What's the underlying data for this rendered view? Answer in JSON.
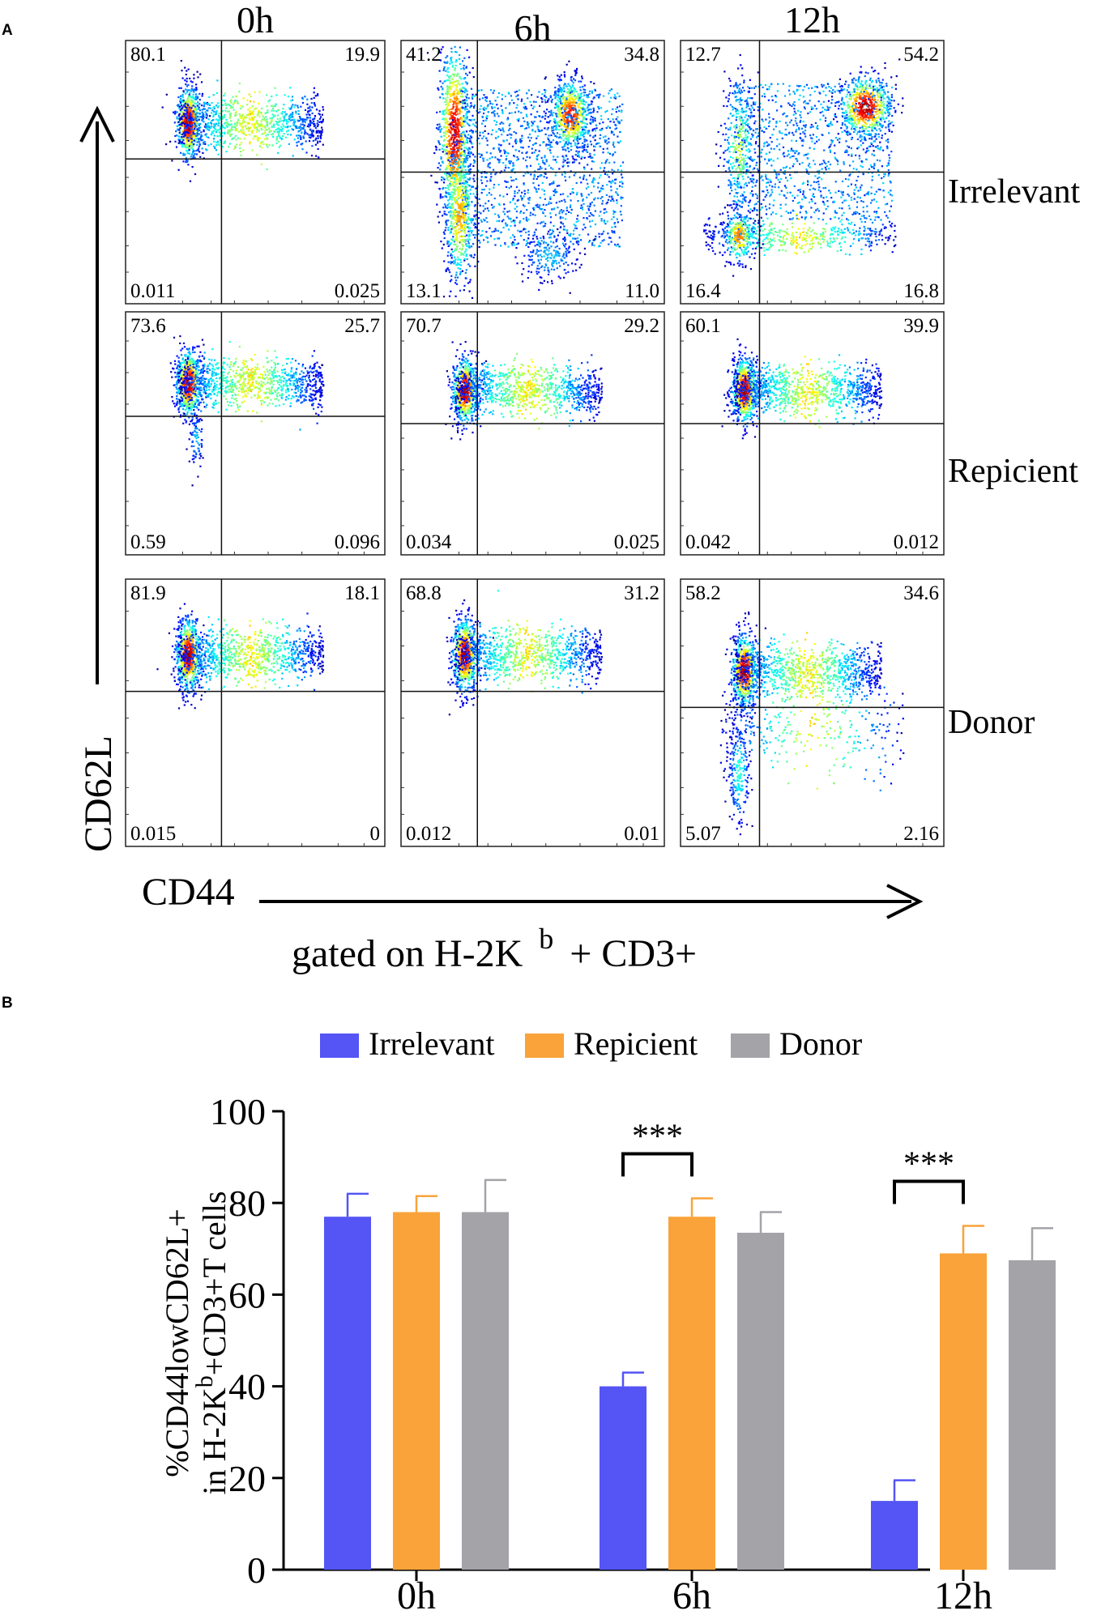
{
  "chart_data": [
    {
      "type": "scatter",
      "panel_label": "A",
      "subtype": "flow-cytometry-density-plots",
      "columns": [
        "0h",
        "6h",
        "12h"
      ],
      "rows": [
        "Irrelevant",
        "Repicient",
        "Donor"
      ],
      "xlabel": "CD44",
      "ylabel": "CD62L",
      "gating_prefix": "gated on H-2K",
      "gating_sup": "b",
      "gating_suffix": "+ CD3+",
      "quadrants": [
        [
          {
            "tl": "80.1",
            "tr": "19.9",
            "bl": "0.011",
            "br": "0.025"
          },
          {
            "tl": "41.2",
            "tr": "34.8",
            "bl": "13.1",
            "br": "11.0"
          },
          {
            "tl": "12.7",
            "tr": "54.2",
            "bl": "16.4",
            "br": "16.8"
          }
        ],
        [
          {
            "tl": "73.6",
            "tr": "25.7",
            "bl": "0.59",
            "br": "0.096"
          },
          {
            "tl": "70.7",
            "tr": "29.2",
            "bl": "0.034",
            "br": "0.025"
          },
          {
            "tl": "60.1",
            "tr": "39.9",
            "bl": "0.042",
            "br": "0.012"
          }
        ],
        [
          {
            "tl": "81.9",
            "tr": "18.1",
            "bl": "0.015",
            "br": "0"
          },
          {
            "tl": "68.8",
            "tr": "31.2",
            "bl": "0.012",
            "br": "0.01"
          },
          {
            "tl": "58.2",
            "tr": "34.6",
            "bl": "5.07",
            "br": "2.16"
          }
        ]
      ]
    },
    {
      "type": "bar",
      "panel_label": "B",
      "categories": [
        "0h",
        "6h",
        "12h"
      ],
      "series": [
        {
          "name": "Irrelevant",
          "color": "#5455f4",
          "values": [
            77,
            40,
            15
          ],
          "errors": [
            5,
            3,
            4.5
          ]
        },
        {
          "name": "Repicient",
          "color": "#f9a33a",
          "values": [
            78,
            77,
            69
          ],
          "errors": [
            3.5,
            4,
            6
          ]
        },
        {
          "name": "Donor",
          "color": "#a3a3a8",
          "values": [
            78,
            73.5,
            67.5
          ],
          "errors": [
            7,
            4.5,
            7
          ]
        }
      ],
      "ylim": [
        0,
        100
      ],
      "yticks": [
        0,
        20,
        40,
        60,
        80,
        100
      ],
      "ylabel_line1": "%CD44lowCD62L+",
      "ylabel_line2_prefix": "in H-2K",
      "ylabel_line2_sup": "b",
      "ylabel_line2_suffix": "+CD3+T cells",
      "significance": [
        {
          "category": "6h",
          "label": "***"
        },
        {
          "category": "12h",
          "label": "***"
        }
      ]
    }
  ]
}
